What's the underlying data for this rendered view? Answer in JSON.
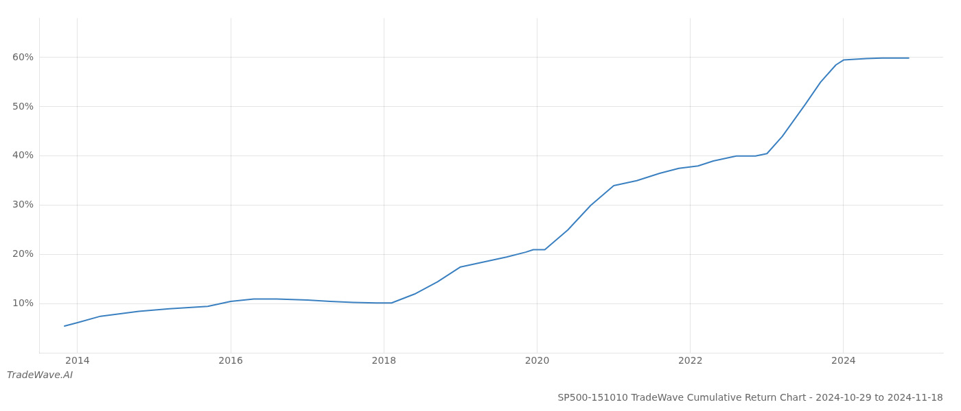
{
  "chart_data": {
    "type": "line",
    "title": "SP500-151010 TradeWave Cumulative Return Chart - 2024-10-29 to 2024-11-18",
    "annotations": [
      "TradeWave.AI"
    ],
    "x": [
      2013.83,
      2014.0,
      2014.3,
      2014.8,
      2015.2,
      2015.7,
      2016.0,
      2016.3,
      2016.6,
      2017.0,
      2017.3,
      2017.6,
      2017.9,
      2018.1,
      2018.4,
      2018.7,
      2019.0,
      2019.3,
      2019.6,
      2019.85,
      2019.95,
      2020.1,
      2020.4,
      2020.7,
      2021.0,
      2021.3,
      2021.6,
      2021.85,
      2022.1,
      2022.3,
      2022.6,
      2022.85,
      2023.0,
      2023.2,
      2023.5,
      2023.7,
      2023.9,
      2024.0,
      2024.3,
      2024.5,
      2024.85
    ],
    "values": [
      5.5,
      6.2,
      7.5,
      8.5,
      9.0,
      9.5,
      10.5,
      11.0,
      11.0,
      10.8,
      10.5,
      10.3,
      10.2,
      10.2,
      12.0,
      14.5,
      17.5,
      18.5,
      19.5,
      20.5,
      21.0,
      21.0,
      25.0,
      30.0,
      34.0,
      35.0,
      36.5,
      37.5,
      38.0,
      39.0,
      40.0,
      40.0,
      40.5,
      44.0,
      50.5,
      55.0,
      58.5,
      59.5,
      59.8,
      59.9,
      59.9
    ],
    "color": "#3a80c0",
    "xlim": [
      2013.5,
      2025.3
    ],
    "ylim": [
      0,
      68
    ],
    "xticks": [
      2014,
      2016,
      2018,
      2020,
      2022,
      2024
    ],
    "yticks": [
      {
        "value": 10,
        "label": "10%"
      },
      {
        "value": 20,
        "label": "20%"
      },
      {
        "value": 30,
        "label": "30%"
      },
      {
        "value": 40,
        "label": "40%"
      },
      {
        "value": 50,
        "label": "50%"
      },
      {
        "value": 60,
        "label": "60%"
      }
    ],
    "grid": true
  }
}
